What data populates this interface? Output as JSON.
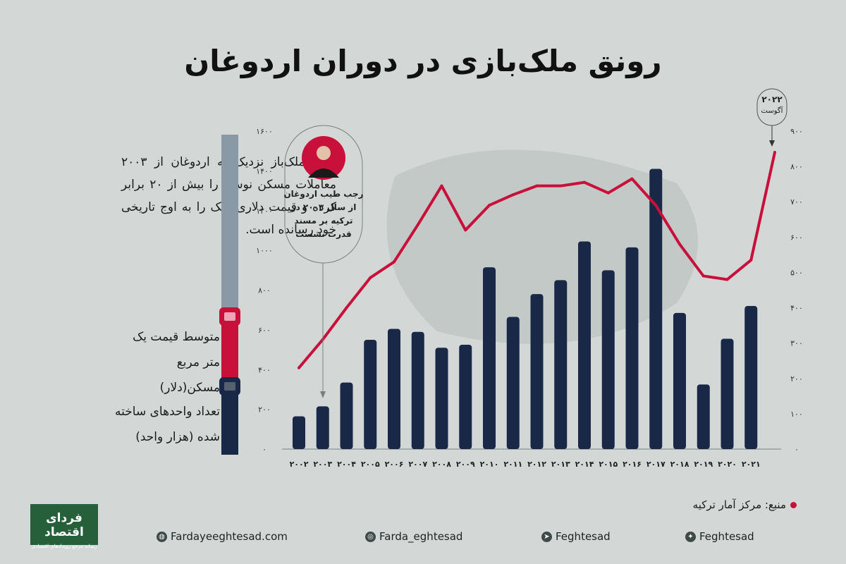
{
  "title": "رونق ملک‌بازی در دوران اردوغان",
  "description": "حلقه ملک‌باز نزدیک به اردوغان از ۲۰۰۳ معاملات مسکن نوساز را بیش از ۲۰ برابر کرده و قیمت دلاری ملک را به اوج تاریخی خود رسانده است.",
  "legend": {
    "line_label": "متوسط قیمت یک متر مربع مسکن(دلار)",
    "bar_label": "تعداد واحدهای ساخته شده (هزار واحد)"
  },
  "annotation": {
    "erdogan": "رجب طیب اردوغان از سال ۲۰۰۳ در ترکیه بر مسند قدرت نشست",
    "latest_year": "۲۰۲۲",
    "latest_month": "آگوست"
  },
  "source": "منبع: مرکز آمار ترکیه",
  "footer": {
    "website": "Fardayeeghtesad.com",
    "instagram": "Farda_eghtesad",
    "telegram": "Feghtesad",
    "twitter": "Feghtesad"
  },
  "logo": {
    "name": "فردای اقتصاد",
    "tagline": "رسانه مرجع رویدادهای اقتصادی"
  },
  "colors": {
    "bar": "#182846",
    "line": "#c8103a",
    "background": "#d3d7d6"
  },
  "chart_data": {
    "type": "bar",
    "categories": [
      "۲۰۰۲",
      "۲۰۰۳",
      "۲۰۰۴",
      "۲۰۰۵",
      "۲۰۰۶",
      "۲۰۰۷",
      "۲۰۰۸",
      "۲۰۰۹",
      "۲۰۱۰",
      "۲۰۱۱",
      "۲۰۱۲",
      "۲۰۱۳",
      "۲۰۱۴",
      "۲۰۱۵",
      "۲۰۱۶",
      "۲۰۱۷",
      "۲۰۱۸",
      "۲۰۱۹",
      "۲۰۲۰",
      "۲۰۲۱"
    ],
    "series": [
      {
        "name": "تعداد واحدهای ساخته شده (هزار واحد)",
        "type": "bar",
        "axis": "left",
        "values": [
          165,
          215,
          335,
          550,
          605,
          590,
          510,
          525,
          915,
          665,
          780,
          850,
          1045,
          900,
          1015,
          1410,
          685,
          325,
          555,
          720
        ]
      },
      {
        "name": "متوسط قیمت یک متر مربع مسکن(دلار)",
        "type": "line",
        "axis": "right",
        "x": [
          "۲۰۰۲",
          "۲۰۰۳",
          "۲۰۰۴",
          "۲۰۰۵",
          "۲۰۰۶",
          "۲۰۰۷",
          "۲۰۰۸",
          "۲۰۰۹",
          "۲۰۱۰",
          "۲۰۱۱",
          "۲۰۱۲",
          "۲۰۱۳",
          "۲۰۱۴",
          "۲۰۱۵",
          "۲۰۱۶",
          "۲۰۱۷",
          "۲۰۱۸",
          "۲۰۱۹",
          "۲۰۲۰",
          "۲۰۲۱",
          "۲۰۲۲ آگوست"
        ],
        "values": [
          230,
          310,
          400,
          485,
          530,
          635,
          745,
          620,
          690,
          720,
          745,
          745,
          755,
          725,
          765,
          690,
          580,
          490,
          480,
          535,
          840
        ]
      }
    ],
    "y_left": {
      "ticks": [
        "۰",
        "۲۰۰",
        "۴۰۰",
        "۶۰۰",
        "۸۰۰",
        "۱۰۰۰",
        "۱۲۰۰",
        "۱۴۰۰",
        "۱۶۰۰"
      ],
      "ylim": [
        0,
        1600
      ]
    },
    "y_right": {
      "ticks": [
        "۰",
        "۱۰۰",
        "۲۰۰",
        "۳۰۰",
        "۴۰۰",
        "۵۰۰",
        "۶۰۰",
        "۷۰۰",
        "۸۰۰",
        "۹۰۰"
      ],
      "ylim": [
        0,
        900
      ]
    },
    "grid": false,
    "legend": "left"
  }
}
